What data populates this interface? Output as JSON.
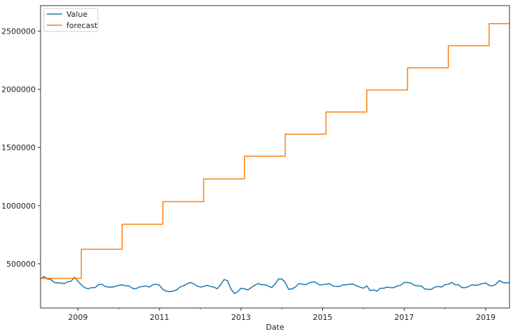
{
  "chart_data": {
    "type": "line",
    "title": "",
    "xlabel": "Date",
    "ylabel": "",
    "xlim": [
      2008.083,
      2019.583
    ],
    "ylim": [
      120000,
      2720000
    ],
    "grid": false,
    "legend_position": "top-left",
    "x_ticks": [
      2009,
      2011,
      2013,
      2015,
      2017,
      2019
    ],
    "x_tick_labels": [
      "2009",
      "2011",
      "2013",
      "2015",
      "2017",
      "2019"
    ],
    "y_ticks": [
      500000,
      1000000,
      1500000,
      2000000,
      2500000
    ],
    "y_tick_labels": [
      "500000",
      "1000000",
      "1500000",
      "2000000",
      "2500000"
    ],
    "series": [
      {
        "name": "Value",
        "color": "#1f77b4",
        "style": "line",
        "x": [
          2008.083,
          2008.167,
          2008.25,
          2008.333,
          2008.417,
          2008.5,
          2008.583,
          2008.667,
          2008.75,
          2008.833,
          2008.917,
          2009.0,
          2009.083,
          2009.167,
          2009.25,
          2009.333,
          2009.417,
          2009.5,
          2009.583,
          2009.667,
          2009.75,
          2009.833,
          2009.917,
          2010.0,
          2010.083,
          2010.167,
          2010.25,
          2010.333,
          2010.417,
          2010.5,
          2010.583,
          2010.667,
          2010.75,
          2010.833,
          2010.917,
          2011.0,
          2011.083,
          2011.167,
          2011.25,
          2011.333,
          2011.417,
          2011.5,
          2011.583,
          2011.667,
          2011.75,
          2011.833,
          2011.917,
          2012.0,
          2012.083,
          2012.167,
          2012.25,
          2012.333,
          2012.417,
          2012.5,
          2012.583,
          2012.667,
          2012.75,
          2012.833,
          2012.917,
          2013.0,
          2013.083,
          2013.167,
          2013.25,
          2013.333,
          2013.417,
          2013.5,
          2013.583,
          2013.667,
          2013.75,
          2013.833,
          2013.917,
          2014.0,
          2014.083,
          2014.167,
          2014.25,
          2014.333,
          2014.417,
          2014.5,
          2014.583,
          2014.667,
          2014.75,
          2014.833,
          2014.917,
          2015.0,
          2015.083,
          2015.167,
          2015.25,
          2015.333,
          2015.417,
          2015.5,
          2015.583,
          2015.667,
          2015.75,
          2015.833,
          2015.917,
          2016.0,
          2016.083,
          2016.167,
          2016.25,
          2016.333,
          2016.417,
          2016.5,
          2016.583,
          2016.667,
          2016.75,
          2016.833,
          2016.917,
          2017.0,
          2017.083,
          2017.167,
          2017.25,
          2017.333,
          2017.417,
          2017.5,
          2017.583,
          2017.667,
          2017.75,
          2017.833,
          2017.917,
          2018.0,
          2018.083,
          2018.167,
          2018.25,
          2018.333,
          2018.417,
          2018.5,
          2018.583,
          2018.667,
          2018.75,
          2018.833,
          2018.917,
          2019.0,
          2019.083,
          2019.167,
          2019.25,
          2019.333,
          2019.417,
          2019.5,
          2019.583
        ],
        "y": [
          370000,
          390000,
          370000,
          365000,
          340000,
          335000,
          335000,
          330000,
          345000,
          350000,
          385000,
          350000,
          320000,
          295000,
          285000,
          295000,
          295000,
          320000,
          325000,
          305000,
          300000,
          300000,
          305000,
          315000,
          320000,
          310000,
          310000,
          290000,
          285000,
          300000,
          305000,
          310000,
          300000,
          320000,
          325000,
          315000,
          280000,
          265000,
          260000,
          265000,
          275000,
          300000,
          310000,
          325000,
          340000,
          330000,
          310000,
          300000,
          305000,
          315000,
          305000,
          300000,
          285000,
          320000,
          365000,
          355000,
          285000,
          245000,
          260000,
          290000,
          285000,
          275000,
          295000,
          315000,
          330000,
          320000,
          320000,
          310000,
          295000,
          325000,
          370000,
          370000,
          340000,
          280000,
          285000,
          300000,
          330000,
          325000,
          320000,
          335000,
          345000,
          340000,
          320000,
          320000,
          325000,
          330000,
          310000,
          305000,
          305000,
          320000,
          320000,
          325000,
          325000,
          310000,
          300000,
          290000,
          310000,
          270000,
          275000,
          265000,
          290000,
          290000,
          300000,
          295000,
          295000,
          310000,
          315000,
          340000,
          340000,
          335000,
          315000,
          310000,
          310000,
          285000,
          280000,
          280000,
          300000,
          305000,
          300000,
          320000,
          325000,
          340000,
          320000,
          320000,
          295000,
          295000,
          305000,
          320000,
          315000,
          320000,
          330000,
          335000,
          315000,
          310000,
          325000,
          355000,
          340000,
          335000,
          340000
        ]
      },
      {
        "name": "forecast",
        "color": "#ff7f0e",
        "style": "step",
        "x": [
          2008.083,
          2009.083,
          2009.083,
          2010.083,
          2010.083,
          2011.083,
          2011.083,
          2012.083,
          2012.083,
          2013.083,
          2013.083,
          2014.083,
          2014.083,
          2015.083,
          2015.083,
          2016.083,
          2016.083,
          2017.083,
          2017.083,
          2018.083,
          2018.083,
          2019.083,
          2019.083,
          2019.583
        ],
        "y": [
          375000,
          375000,
          625000,
          625000,
          840000,
          840000,
          1035000,
          1035000,
          1230000,
          1230000,
          1425000,
          1425000,
          1615000,
          1615000,
          1805000,
          1805000,
          1995000,
          1995000,
          2185000,
          2185000,
          2375000,
          2375000,
          2565000,
          2565000
        ]
      }
    ]
  }
}
